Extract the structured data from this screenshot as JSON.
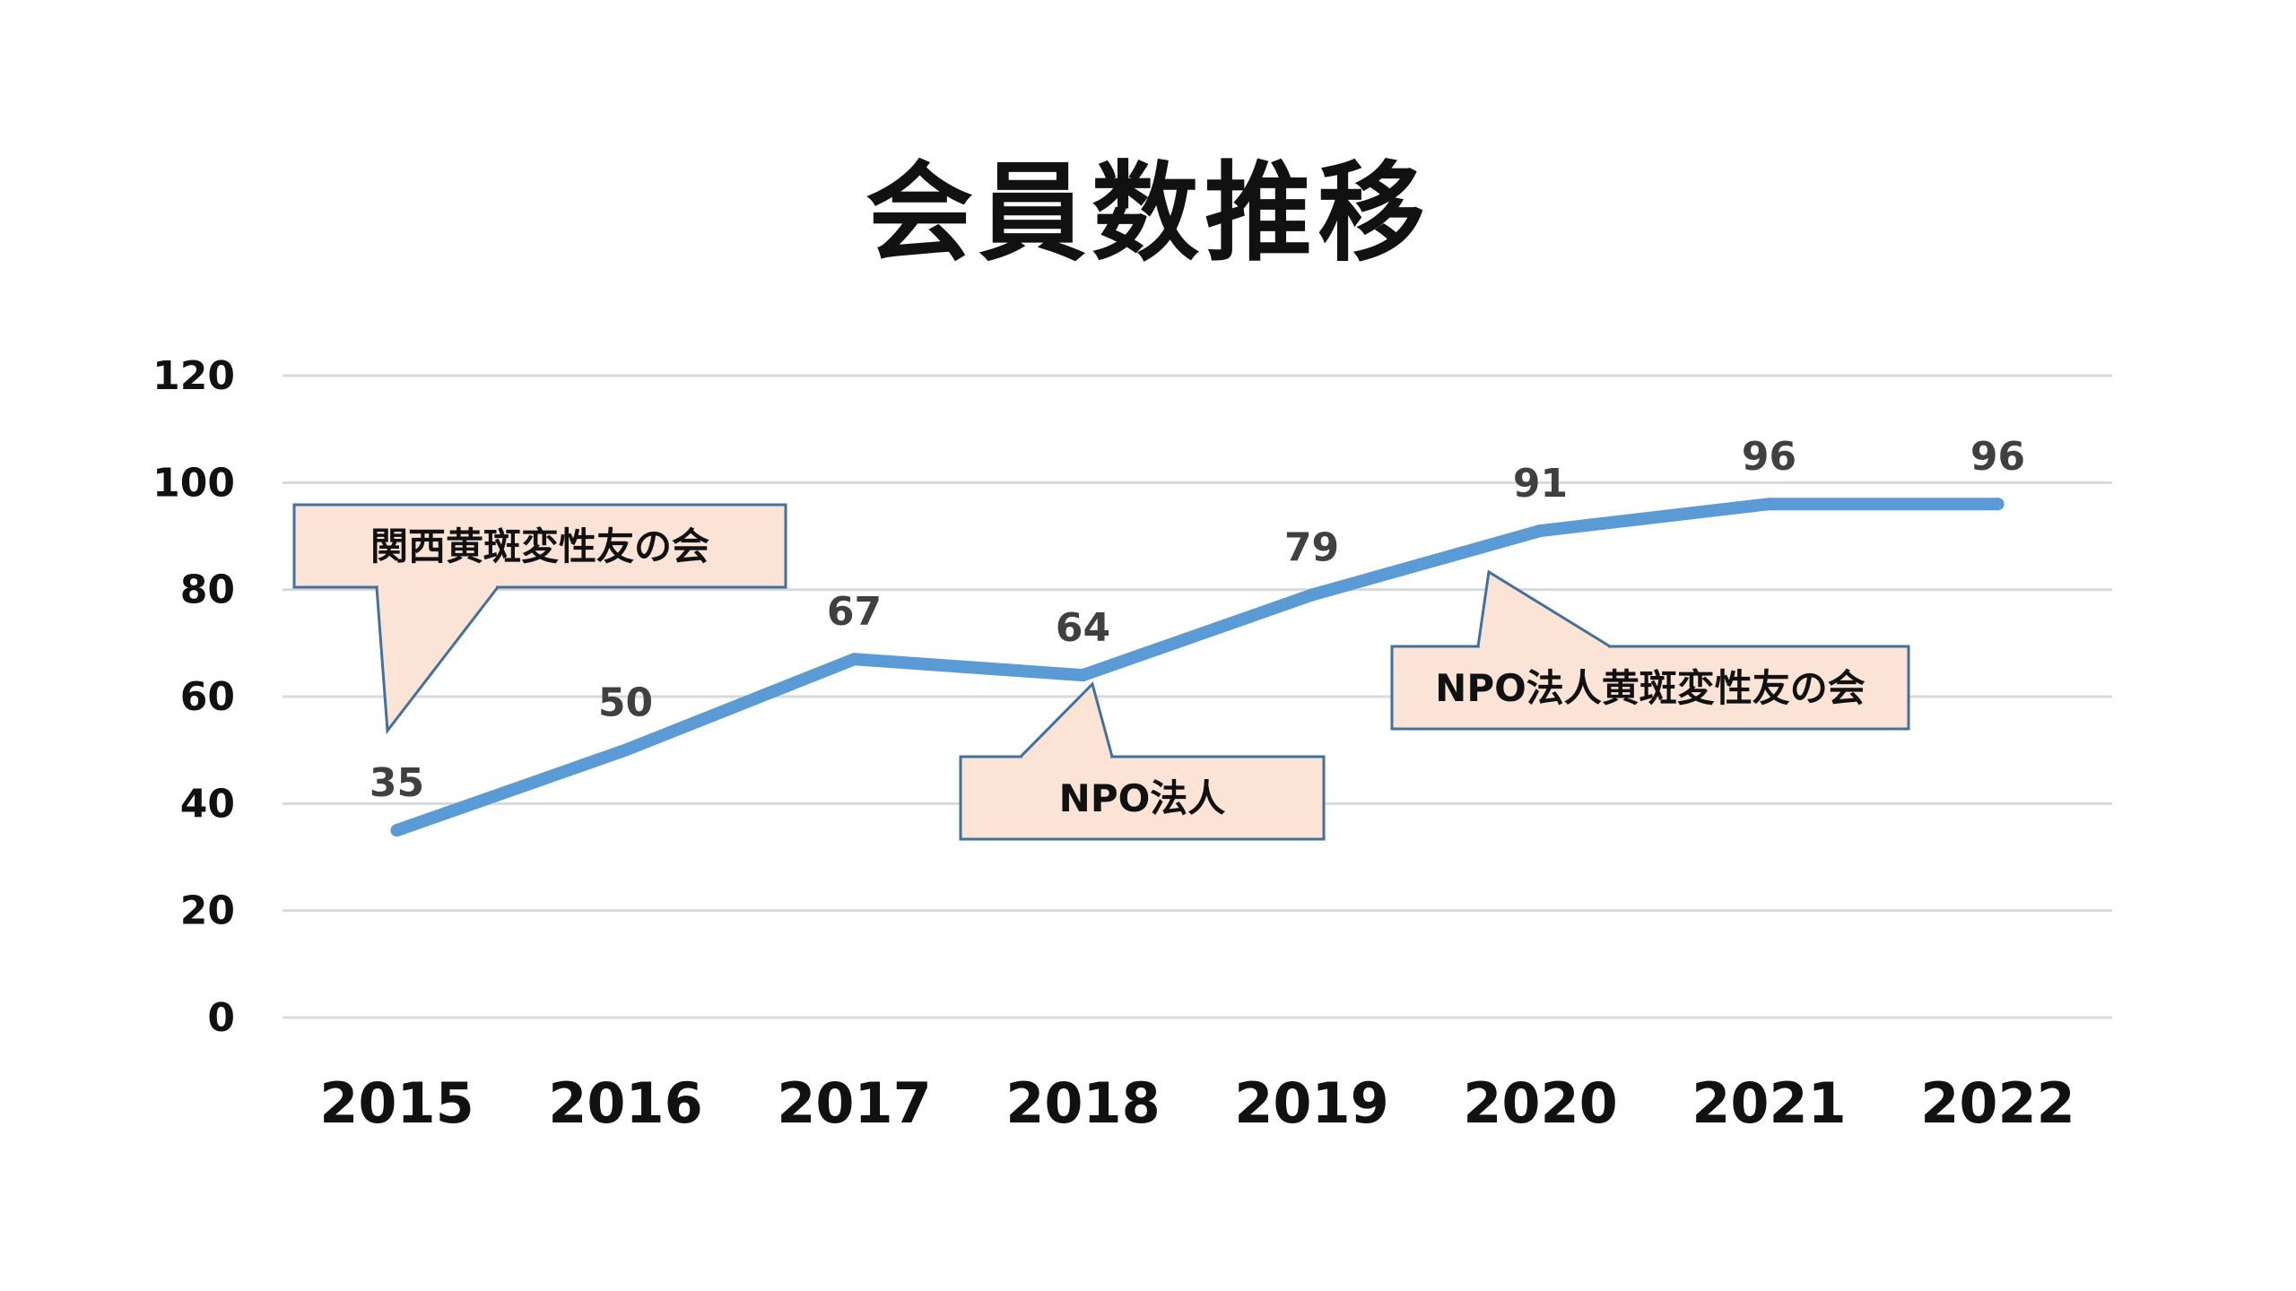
{
  "chart_data": {
    "type": "line",
    "title": "会員数推移",
    "xlabel": "",
    "ylabel": "",
    "categories": [
      "2015",
      "2016",
      "2017",
      "2018",
      "2019",
      "2020",
      "2021",
      "2022"
    ],
    "series": [
      {
        "values": [
          35,
          50,
          67,
          64,
          79,
          91,
          96,
          96
        ]
      }
    ],
    "ylim": [
      0,
      120
    ],
    "yticks": [
      0,
      20,
      40,
      60,
      80,
      100,
      120
    ],
    "grid": true,
    "legend": "none",
    "data_labels": true,
    "annotations": [
      {
        "text": "関西黄斑変性友の会",
        "category": "2015"
      },
      {
        "text": "NPO法人",
        "category": "2018"
      },
      {
        "text": "NPO法人黄斑変性友の会",
        "category": "2020"
      }
    ],
    "colors": {
      "line": "#5b9bd5",
      "grid": "#d9d9d9",
      "callout_fill": "#fbe3d6",
      "callout_border": "#41719c"
    }
  }
}
